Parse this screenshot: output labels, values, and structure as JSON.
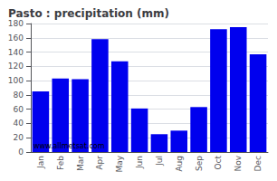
{
  "chart_data": {
    "type": "bar",
    "title": "Pasto : precipitation (mm)",
    "categories": [
      "Jan",
      "Feb",
      "Mar",
      "Apr",
      "May",
      "Jun",
      "Jul",
      "Aug",
      "Sep",
      "Oct",
      "Nov",
      "Dec"
    ],
    "values": [
      85,
      103,
      102,
      158,
      127,
      61,
      25,
      30,
      63,
      172,
      175,
      137
    ],
    "color": "#0000EE",
    "ylim": [
      0,
      180
    ],
    "yticks": [
      0,
      20,
      40,
      60,
      80,
      100,
      120,
      140,
      160,
      180
    ],
    "grid": true,
    "annotations": [
      "www.allmetsat.com"
    ]
  }
}
